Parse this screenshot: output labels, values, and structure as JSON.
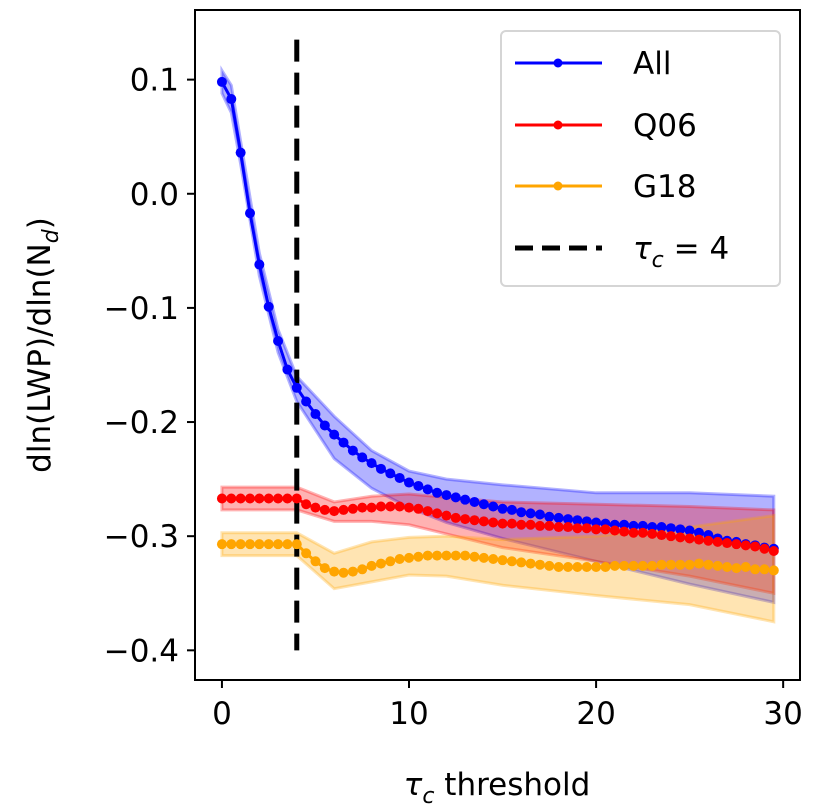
{
  "chart_data": {
    "type": "line",
    "title": "",
    "xlabel": "τc threshold",
    "ylabel": "dln(LWP)/dln(Nd)",
    "xlim": [
      -1.44,
      30.9
    ],
    "ylim": [
      -0.426,
      0.161
    ],
    "xticks": [
      0,
      10,
      20,
      30
    ],
    "xtick_labels": [
      "0",
      "10",
      "20",
      "30"
    ],
    "yticks": [
      0.1,
      0.0,
      -0.1,
      -0.2,
      -0.3,
      -0.4
    ],
    "ytick_labels": [
      "0.1",
      "0.0",
      "−0.1",
      "−0.2",
      "−0.3",
      "−0.4"
    ],
    "grid": false,
    "legend_position": "top-right",
    "x": [
      0,
      0.5,
      1,
      1.5,
      2,
      2.5,
      3,
      3.5,
      4,
      4.5,
      5,
      5.5,
      6,
      6.5,
      7,
      7.5,
      8,
      8.5,
      9,
      9.5,
      10,
      10.5,
      11,
      11.5,
      12,
      12.5,
      13,
      13.5,
      14,
      14.5,
      15,
      15.5,
      16,
      16.5,
      17,
      17.5,
      18,
      18.5,
      19,
      19.5,
      20,
      20.5,
      21,
      21.5,
      22,
      22.5,
      23,
      23.5,
      24,
      24.5,
      25,
      25.5,
      26,
      26.5,
      27,
      27.5,
      28,
      28.5,
      29,
      29.5
    ],
    "band_x": [
      0,
      0.5,
      1,
      2,
      3,
      4,
      6,
      8,
      10,
      12,
      15,
      20,
      25,
      29.5
    ],
    "series": [
      {
        "name": "All",
        "color": "#0000ff",
        "values": [
          0.098,
          0.083,
          0.036,
          -0.017,
          -0.062,
          -0.099,
          -0.129,
          -0.154,
          -0.17,
          -0.182,
          -0.193,
          -0.203,
          -0.211,
          -0.218,
          -0.225,
          -0.231,
          -0.236,
          -0.241,
          -0.245,
          -0.249,
          -0.253,
          -0.256,
          -0.259,
          -0.262,
          -0.264,
          -0.266,
          -0.268,
          -0.27,
          -0.272,
          -0.274,
          -0.276,
          -0.277,
          -0.279,
          -0.28,
          -0.281,
          -0.283,
          -0.284,
          -0.285,
          -0.286,
          -0.287,
          -0.288,
          -0.289,
          -0.29,
          -0.29,
          -0.291,
          -0.291,
          -0.292,
          -0.292,
          -0.293,
          -0.294,
          -0.295,
          -0.297,
          -0.299,
          -0.302,
          -0.304,
          -0.305,
          -0.307,
          -0.308,
          -0.31,
          -0.311
        ],
        "band_upper": [
          0.108,
          0.095,
          0.046,
          -0.052,
          -0.119,
          -0.16,
          -0.195,
          -0.225,
          -0.243,
          -0.25,
          -0.255,
          -0.262,
          -0.262,
          -0.265
        ],
        "band_lower": [
          0.088,
          0.071,
          0.026,
          -0.072,
          -0.139,
          -0.182,
          -0.232,
          -0.258,
          -0.275,
          -0.288,
          -0.302,
          -0.322,
          -0.342,
          -0.358
        ]
      },
      {
        "name": "Q06",
        "color": "#ff0000",
        "values": [
          -0.267,
          -0.267,
          -0.267,
          -0.267,
          -0.267,
          -0.267,
          -0.267,
          -0.267,
          -0.267,
          -0.272,
          -0.275,
          -0.277,
          -0.278,
          -0.277,
          -0.276,
          -0.275,
          -0.275,
          -0.274,
          -0.274,
          -0.274,
          -0.275,
          -0.276,
          -0.278,
          -0.28,
          -0.282,
          -0.284,
          -0.285,
          -0.286,
          -0.287,
          -0.288,
          -0.289,
          -0.289,
          -0.29,
          -0.29,
          -0.291,
          -0.291,
          -0.292,
          -0.292,
          -0.293,
          -0.293,
          -0.294,
          -0.294,
          -0.295,
          -0.296,
          -0.297,
          -0.297,
          -0.298,
          -0.299,
          -0.3,
          -0.301,
          -0.302,
          -0.303,
          -0.304,
          -0.305,
          -0.306,
          -0.307,
          -0.308,
          -0.309,
          -0.311,
          -0.313
        ],
        "band_upper": [
          -0.257,
          -0.257,
          -0.257,
          -0.257,
          -0.257,
          -0.257,
          -0.27,
          -0.265,
          -0.263,
          -0.266,
          -0.27,
          -0.272,
          -0.274,
          -0.277
        ],
        "band_lower": [
          -0.277,
          -0.277,
          -0.277,
          -0.277,
          -0.277,
          -0.277,
          -0.287,
          -0.287,
          -0.29,
          -0.298,
          -0.31,
          -0.322,
          -0.335,
          -0.35
        ]
      },
      {
        "name": "G18",
        "color": "#ffa500",
        "values": [
          -0.307,
          -0.307,
          -0.307,
          -0.307,
          -0.307,
          -0.307,
          -0.307,
          -0.307,
          -0.307,
          -0.315,
          -0.322,
          -0.328,
          -0.331,
          -0.332,
          -0.331,
          -0.329,
          -0.326,
          -0.324,
          -0.322,
          -0.32,
          -0.319,
          -0.318,
          -0.317,
          -0.317,
          -0.317,
          -0.317,
          -0.317,
          -0.318,
          -0.319,
          -0.32,
          -0.321,
          -0.322,
          -0.323,
          -0.324,
          -0.325,
          -0.326,
          -0.327,
          -0.327,
          -0.327,
          -0.327,
          -0.327,
          -0.327,
          -0.326,
          -0.326,
          -0.326,
          -0.326,
          -0.326,
          -0.325,
          -0.325,
          -0.325,
          -0.325,
          -0.324,
          -0.325,
          -0.326,
          -0.327,
          -0.328,
          -0.327,
          -0.329,
          -0.329,
          -0.33
        ],
        "band_upper": [
          -0.297,
          -0.297,
          -0.297,
          -0.297,
          -0.297,
          -0.297,
          -0.315,
          -0.305,
          -0.301,
          -0.3,
          -0.303,
          -0.3,
          -0.292,
          -0.282
        ],
        "band_lower": [
          -0.317,
          -0.317,
          -0.317,
          -0.317,
          -0.317,
          -0.317,
          -0.346,
          -0.34,
          -0.334,
          -0.335,
          -0.343,
          -0.352,
          -0.36,
          -0.375
        ]
      }
    ],
    "vline": {
      "x": 4,
      "y_range": [
        -0.4,
        0.135
      ],
      "label": "τc = 4",
      "color": "#000000"
    },
    "legend": [
      "All",
      "Q06",
      "G18",
      "τc = 4"
    ]
  }
}
